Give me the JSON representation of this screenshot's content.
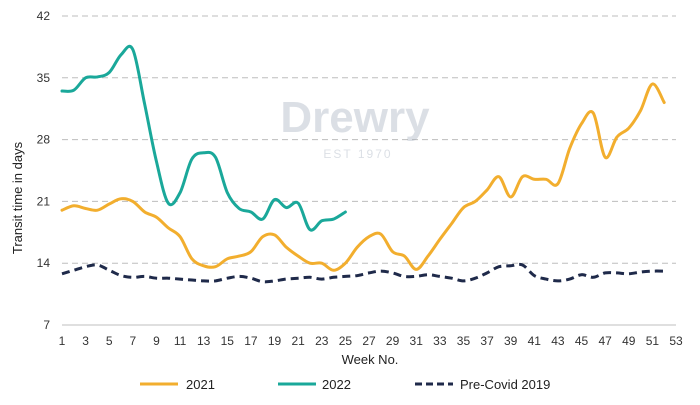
{
  "chart_data": {
    "type": "line",
    "title": "",
    "xlabel": "Week No.",
    "ylabel": "Transit time in days",
    "xlim": [
      1,
      53
    ],
    "ylim": [
      7,
      42
    ],
    "x_ticks": [
      1,
      3,
      5,
      7,
      9,
      11,
      13,
      15,
      17,
      19,
      21,
      23,
      25,
      27,
      29,
      31,
      33,
      35,
      37,
      39,
      41,
      43,
      45,
      47,
      49,
      51,
      53
    ],
    "y_ticks": [
      7,
      14,
      21,
      28,
      35,
      42
    ],
    "grid": "horizontal-dashed",
    "legend_position": "bottom",
    "watermark": {
      "brand": "Drewry",
      "tagline": "EST 1970"
    },
    "series": [
      {
        "name": "2021",
        "color": "#F2AE2E",
        "style": "solid",
        "points": [
          [
            1,
            20.0
          ],
          [
            2,
            20.5
          ],
          [
            3,
            20.2
          ],
          [
            4,
            20.0
          ],
          [
            5,
            20.7
          ],
          [
            6,
            21.3
          ],
          [
            7,
            21.0
          ],
          [
            8,
            19.8
          ],
          [
            9,
            19.2
          ],
          [
            10,
            18.0
          ],
          [
            11,
            17.0
          ],
          [
            12,
            14.5
          ],
          [
            13,
            13.7
          ],
          [
            14,
            13.6
          ],
          [
            15,
            14.5
          ],
          [
            16,
            14.8
          ],
          [
            17,
            15.3
          ],
          [
            18,
            17.0
          ],
          [
            19,
            17.2
          ],
          [
            20,
            15.8
          ],
          [
            21,
            14.8
          ],
          [
            22,
            14.0
          ],
          [
            23,
            14.0
          ],
          [
            24,
            13.2
          ],
          [
            25,
            14.0
          ],
          [
            26,
            15.8
          ],
          [
            27,
            17.0
          ],
          [
            28,
            17.3
          ],
          [
            29,
            15.3
          ],
          [
            30,
            14.8
          ],
          [
            31,
            13.3
          ],
          [
            32,
            14.8
          ],
          [
            33,
            16.7
          ],
          [
            34,
            18.5
          ],
          [
            35,
            20.3
          ],
          [
            36,
            21.0
          ],
          [
            37,
            22.3
          ],
          [
            38,
            23.8
          ],
          [
            39,
            21.5
          ],
          [
            40,
            23.8
          ],
          [
            41,
            23.5
          ],
          [
            42,
            23.5
          ],
          [
            43,
            23.0
          ],
          [
            44,
            27.0
          ],
          [
            45,
            29.8
          ],
          [
            46,
            31.0
          ],
          [
            47,
            26.0
          ],
          [
            48,
            28.3
          ],
          [
            49,
            29.3
          ],
          [
            50,
            31.3
          ],
          [
            51,
            34.3
          ],
          [
            52,
            32.2
          ]
        ]
      },
      {
        "name": "2022",
        "color": "#1AA89A",
        "style": "solid",
        "points": [
          [
            1,
            33.5
          ],
          [
            2,
            33.6
          ],
          [
            3,
            35.0
          ],
          [
            4,
            35.1
          ],
          [
            5,
            35.6
          ],
          [
            6,
            37.6
          ],
          [
            7,
            38.2
          ],
          [
            8,
            32.0
          ],
          [
            9,
            25.5
          ],
          [
            10,
            20.8
          ],
          [
            11,
            22.0
          ],
          [
            12,
            25.8
          ],
          [
            13,
            26.5
          ],
          [
            14,
            26.0
          ],
          [
            15,
            22.0
          ],
          [
            16,
            20.2
          ],
          [
            17,
            19.8
          ],
          [
            18,
            19.0
          ],
          [
            19,
            21.2
          ],
          [
            20,
            20.3
          ],
          [
            21,
            20.8
          ],
          [
            22,
            17.8
          ],
          [
            23,
            18.8
          ],
          [
            24,
            19.0
          ],
          [
            25,
            19.8
          ]
        ]
      },
      {
        "name": "Pre-Covid 2019",
        "color": "#1F2A4A",
        "style": "dashed",
        "points": [
          [
            1,
            12.8
          ],
          [
            2,
            13.2
          ],
          [
            3,
            13.6
          ],
          [
            4,
            13.8
          ],
          [
            5,
            13.2
          ],
          [
            6,
            12.6
          ],
          [
            7,
            12.4
          ],
          [
            8,
            12.5
          ],
          [
            9,
            12.3
          ],
          [
            10,
            12.3
          ],
          [
            11,
            12.2
          ],
          [
            12,
            12.1
          ],
          [
            13,
            12.0
          ],
          [
            14,
            12.0
          ],
          [
            15,
            12.3
          ],
          [
            16,
            12.5
          ],
          [
            17,
            12.3
          ],
          [
            18,
            11.9
          ],
          [
            19,
            12.0
          ],
          [
            20,
            12.2
          ],
          [
            21,
            12.3
          ],
          [
            22,
            12.4
          ],
          [
            23,
            12.2
          ],
          [
            24,
            12.4
          ],
          [
            25,
            12.5
          ],
          [
            26,
            12.6
          ],
          [
            27,
            12.9
          ],
          [
            28,
            13.1
          ],
          [
            29,
            12.9
          ],
          [
            30,
            12.5
          ],
          [
            31,
            12.5
          ],
          [
            32,
            12.7
          ],
          [
            33,
            12.5
          ],
          [
            34,
            12.3
          ],
          [
            35,
            12.0
          ],
          [
            36,
            12.3
          ],
          [
            37,
            12.9
          ],
          [
            38,
            13.6
          ],
          [
            39,
            13.7
          ],
          [
            40,
            13.8
          ],
          [
            41,
            12.6
          ],
          [
            42,
            12.2
          ],
          [
            43,
            12.0
          ],
          [
            44,
            12.2
          ],
          [
            45,
            12.7
          ],
          [
            46,
            12.4
          ],
          [
            47,
            12.9
          ],
          [
            48,
            12.9
          ],
          [
            49,
            12.8
          ],
          [
            50,
            13.0
          ],
          [
            51,
            13.1
          ],
          [
            52,
            13.1
          ]
        ]
      }
    ]
  }
}
